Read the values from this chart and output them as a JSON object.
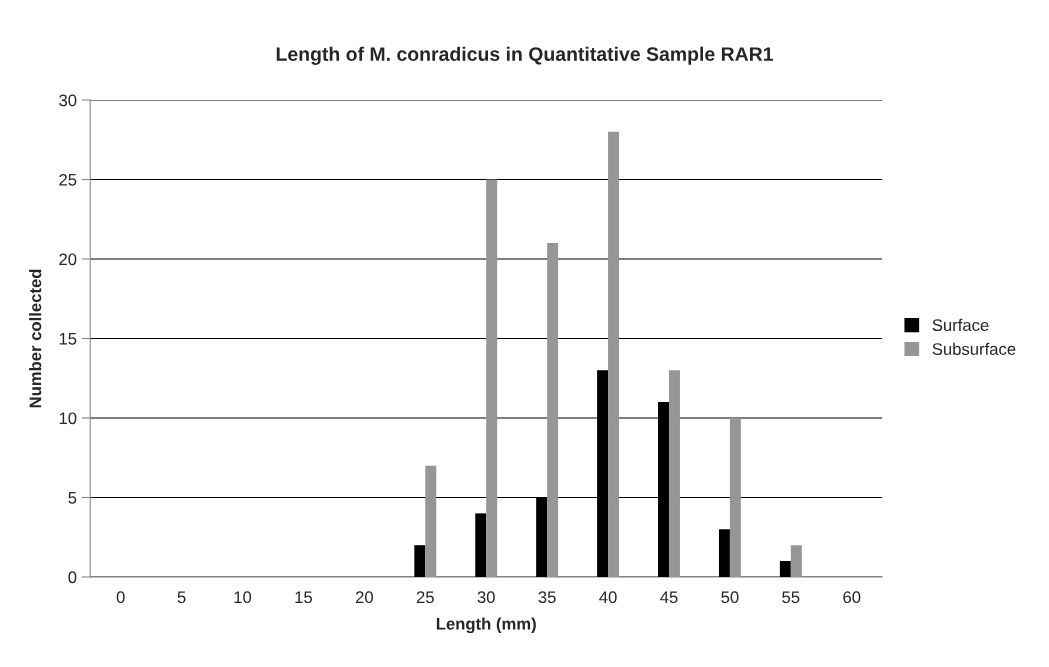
{
  "chart_data": {
    "type": "bar",
    "title": "Length of M. conradicus in Quantitative Sample RAR1",
    "xlabel": "Length (mm)",
    "ylabel": "Number collected",
    "categories": [
      "0",
      "5",
      "10",
      "15",
      "20",
      "25",
      "30",
      "35",
      "40",
      "45",
      "50",
      "55",
      "60"
    ],
    "series": [
      {
        "name": "Surface",
        "color": "#000000",
        "values": [
          0,
          0,
          0,
          0,
          0,
          2,
          4,
          5,
          13,
          11,
          3,
          1,
          0
        ]
      },
      {
        "name": "Subsurface",
        "color": "#969696",
        "values": [
          0,
          0,
          0,
          0,
          0,
          7,
          25,
          21,
          28,
          13,
          10,
          2,
          0
        ]
      }
    ],
    "ylim": [
      0,
      30
    ],
    "yticks": [
      0,
      5,
      10,
      15,
      20,
      25,
      30
    ],
    "grid": "y",
    "legend": "right"
  }
}
